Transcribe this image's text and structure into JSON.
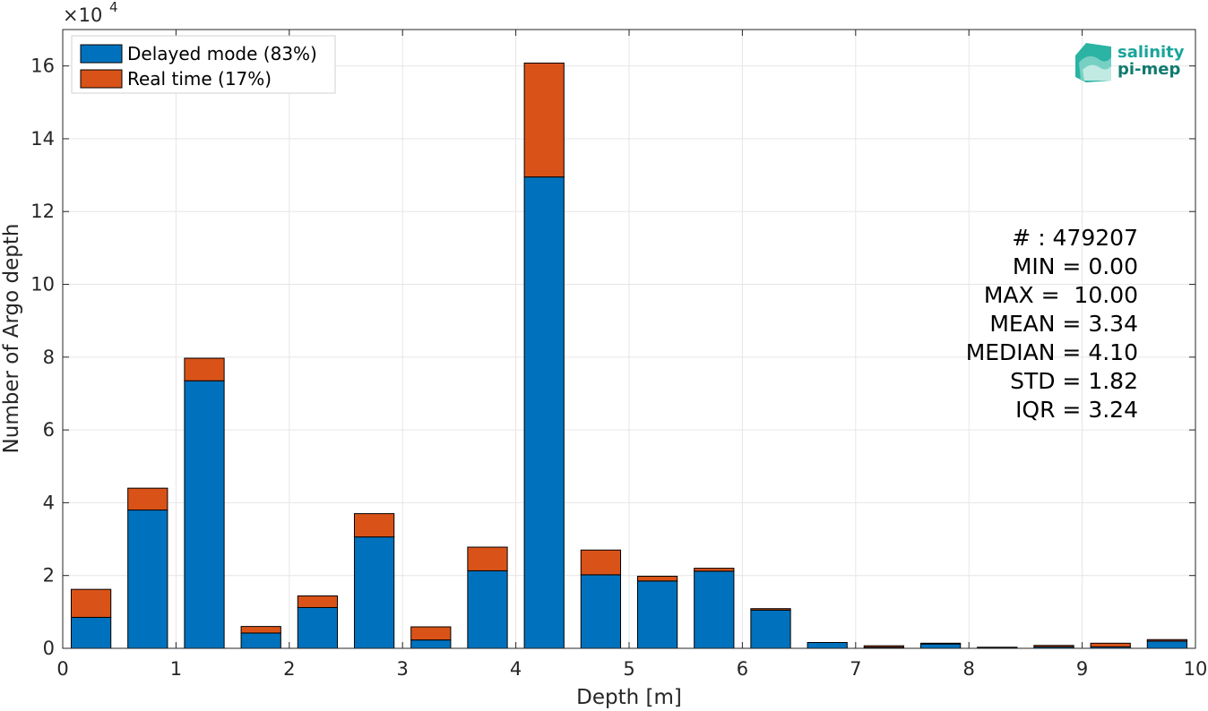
{
  "chart_data": {
    "type": "bar",
    "stacked": true,
    "xlabel": "Depth [m]",
    "ylabel": "Number of Argo depth",
    "y_exponent_label": "×10",
    "y_exponent": "4",
    "xlim": [
      0,
      10
    ],
    "ylim": [
      0,
      17
    ],
    "x_ticks": [
      "0",
      "1",
      "2",
      "3",
      "4",
      "5",
      "6",
      "7",
      "8",
      "9",
      "10"
    ],
    "y_ticks": [
      "0",
      "2",
      "4",
      "6",
      "8",
      "10",
      "12",
      "14",
      "16"
    ],
    "x": [
      0.25,
      0.75,
      1.25,
      1.75,
      2.25,
      2.75,
      3.25,
      3.75,
      4.25,
      4.75,
      5.25,
      5.75,
      6.25,
      6.75,
      7.25,
      7.75,
      8.25,
      8.75,
      9.25,
      9.75
    ],
    "series": [
      {
        "name": "Delayed mode (83%)",
        "color": "#0072BD",
        "values": [
          0.85,
          3.8,
          7.35,
          0.42,
          1.12,
          3.06,
          0.23,
          2.13,
          12.95,
          2.02,
          1.85,
          2.12,
          1.05,
          0.16,
          0.03,
          0.12,
          0.02,
          0.04,
          0.04,
          0.2
        ]
      },
      {
        "name": "Real time (17%)",
        "color": "#D95319",
        "values": [
          0.77,
          0.6,
          0.62,
          0.18,
          0.32,
          0.64,
          0.36,
          0.65,
          3.13,
          0.68,
          0.13,
          0.08,
          0.04,
          0.0,
          0.04,
          0.02,
          0.01,
          0.04,
          0.1,
          0.04
        ]
      }
    ],
    "grid": true,
    "legend_position": "top-left"
  },
  "stats": [
    "# : 479207",
    "MIN = 0.00",
    "MAX =  10.00",
    "MEAN = 3.34",
    "MEDIAN = 4.10",
    "STD = 1.82",
    "IQR = 3.24"
  ],
  "logo": {
    "line1": "salinity",
    "line2": "pi-mep",
    "color1": "#1aa59a",
    "color2": "#117a70"
  }
}
